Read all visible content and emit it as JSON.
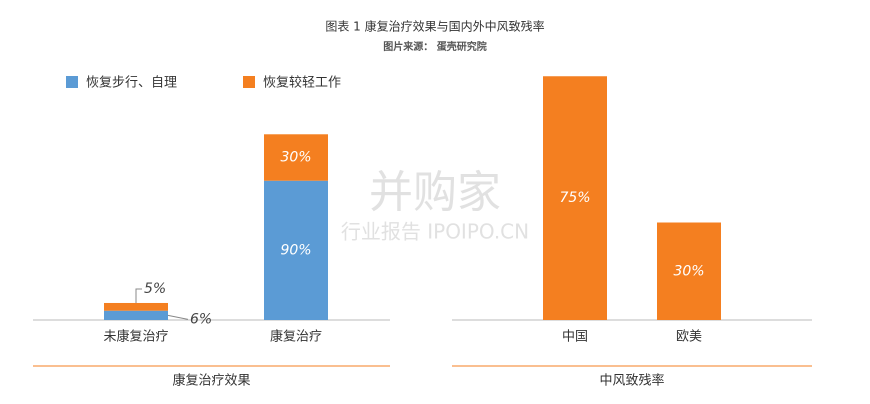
{
  "title": "图表 1 康复治疗效果与国内外中风致残率",
  "subtitle": "图片来源： 蛋壳研究院",
  "watermark": [
    "并购家",
    "行业报告 IPOIPO.CN"
  ],
  "chart_data": [
    {
      "type": "stacked_bar",
      "x_label": "康复治疗效果",
      "categories": [
        "未康复治疗",
        "康复治疗"
      ],
      "series": [
        {
          "name": "恢复步行、自理",
          "color": "#5b9bd5",
          "values": [
            6,
            90
          ],
          "value_labels": [
            "6%",
            "90%"
          ]
        },
        {
          "name": "恢复较轻工作",
          "color": "#f47f20",
          "values": [
            5,
            30
          ],
          "value_labels": [
            "5%",
            "30%"
          ]
        }
      ],
      "ylim": [
        0,
        168
      ],
      "legend": "top-left"
    },
    {
      "type": "bar",
      "x_label": "中风致残率",
      "categories": [
        "中国",
        "欧美"
      ],
      "values": [
        75,
        30
      ],
      "value_labels": [
        "75%",
        "30%"
      ],
      "color": "#f47f20",
      "ylim": [
        0,
        80
      ]
    }
  ]
}
